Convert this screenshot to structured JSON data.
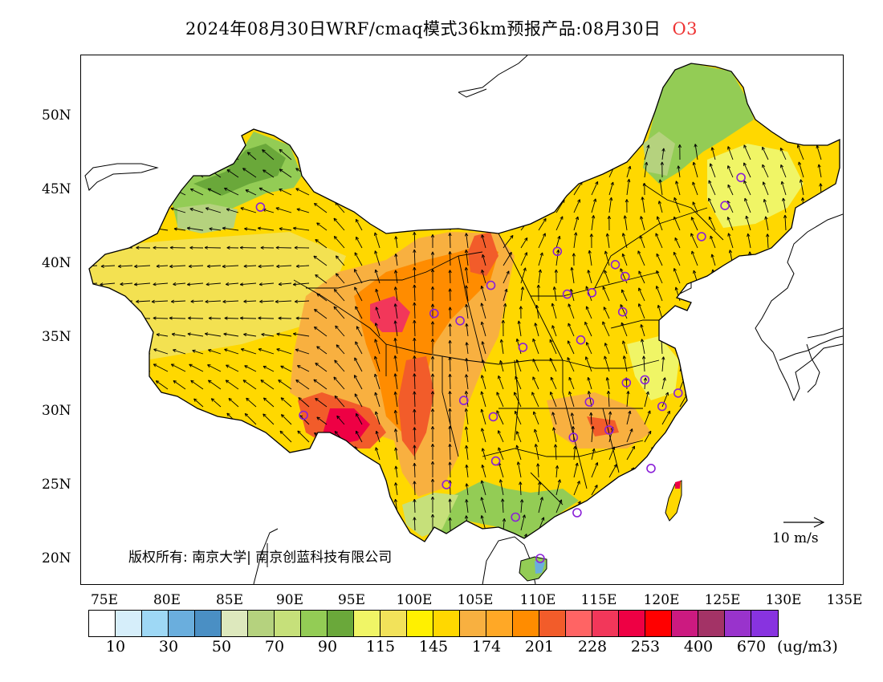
{
  "title": {
    "text": "2024年08月30日WRF/cmaq模式36km预报产品:08月30日",
    "pollutant": "O3"
  },
  "lat_labels": [
    "50N",
    "45N",
    "40N",
    "35N",
    "30N",
    "25N",
    "20N"
  ],
  "lon_labels": [
    "75E",
    "80E",
    "85E",
    "90E",
    "95E",
    "100E",
    "105E",
    "110E",
    "115E",
    "120E",
    "125E",
    "130E",
    "135E"
  ],
  "copyright": "版权所有: 南京大学| 南京创蓝科技有限公司",
  "wind_scale": "10  m/s",
  "colorbar": {
    "colors": [
      "#ffffff",
      "#d6eefa",
      "#9ed8f5",
      "#6aaedd",
      "#4a8fc4",
      "#dde8bd",
      "#b5d27e",
      "#c6e07a",
      "#93cc55",
      "#6aa83a",
      "#f0f566",
      "#f2e25a",
      "#fff000",
      "#ffd800",
      "#f8b040",
      "#ffa826",
      "#ff8c00",
      "#f25c2a",
      "#ff6464",
      "#f2375a",
      "#ee0044",
      "#ff0000",
      "#cc1a80",
      "#a33366",
      "#9933cc",
      "#8833e0"
    ],
    "labels": [
      "10",
      "30",
      "50",
      "70",
      "90",
      "115",
      "145",
      "174",
      "201",
      "228",
      "253",
      "400",
      "670"
    ],
    "unit": "(ug/m3)"
  },
  "stations_lonlat": [
    [
      87.6,
      43.8
    ],
    [
      91.1,
      29.7
    ],
    [
      101.7,
      36.6
    ],
    [
      103.8,
      36.1
    ],
    [
      104.1,
      30.7
    ],
    [
      106.5,
      29.6
    ],
    [
      106.7,
      26.6
    ],
    [
      102.7,
      25.0
    ],
    [
      108.3,
      22.8
    ],
    [
      110.3,
      20.0
    ],
    [
      108.9,
      34.3
    ],
    [
      106.3,
      38.5
    ],
    [
      111.7,
      40.8
    ],
    [
      112.5,
      37.9
    ],
    [
      114.5,
      38.0
    ],
    [
      116.4,
      39.9
    ],
    [
      117.2,
      39.1
    ],
    [
      117.0,
      36.7
    ],
    [
      113.6,
      34.8
    ],
    [
      114.3,
      30.6
    ],
    [
      113.0,
      28.2
    ],
    [
      115.9,
      28.7
    ],
    [
      117.3,
      31.9
    ],
    [
      118.8,
      32.1
    ],
    [
      120.2,
      30.3
    ],
    [
      121.5,
      31.2
    ],
    [
      119.3,
      26.1
    ],
    [
      113.3,
      23.1
    ],
    [
      123.4,
      41.8
    ],
    [
      125.3,
      43.9
    ],
    [
      126.6,
      45.8
    ]
  ]
}
